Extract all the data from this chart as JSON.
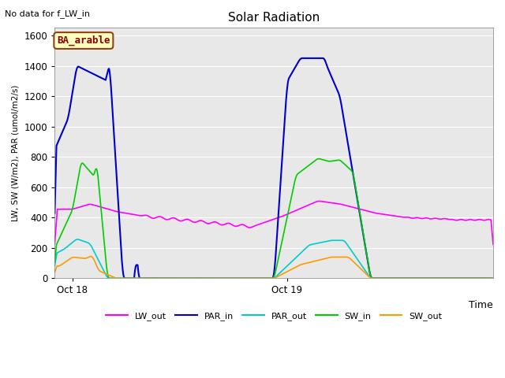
{
  "title": "Solar Radiation",
  "top_left_text": "No data for f_LW_in",
  "legend_label_text": "BA_arable",
  "xlabel": "Time",
  "ylabel": "LW, SW (W/m2), PAR (umol/m2/s)",
  "ylim": [
    0,
    1650
  ],
  "yticks": [
    0,
    200,
    400,
    600,
    800,
    1000,
    1200,
    1400,
    1600
  ],
  "bg_color": "#e8e8e8",
  "series_colors": {
    "LW_out": "#ff00ff",
    "PAR_in": "#0000cc",
    "PAR_out": "#00cccc",
    "SW_in": "#00cc00",
    "SW_out": "#ff9900"
  },
  "x_tick_labels": [
    "Oct 18",
    "Oct 19"
  ],
  "x_tick_positions": [
    0.04,
    0.53
  ]
}
